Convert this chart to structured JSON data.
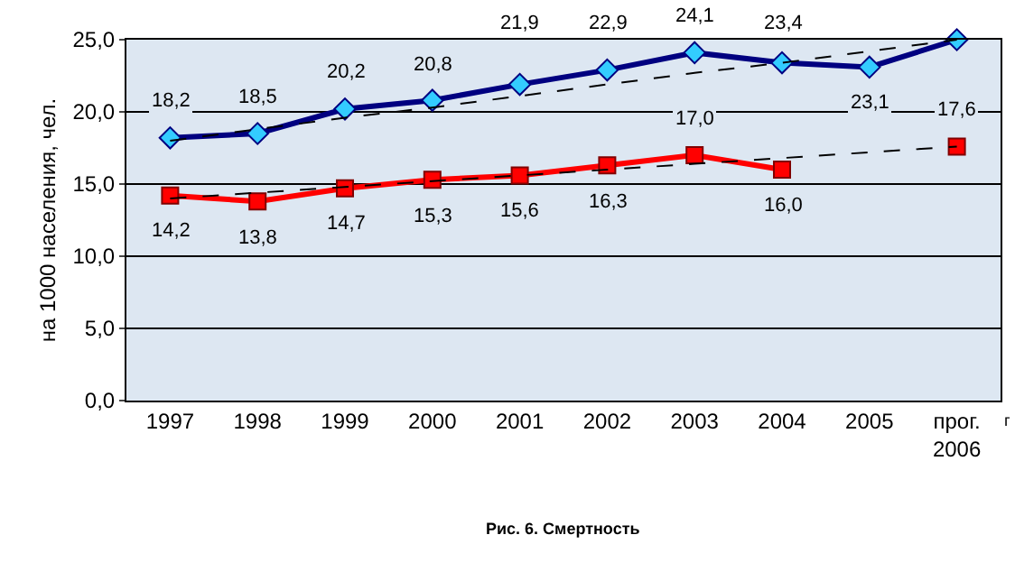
{
  "chart_data": {
    "type": "line",
    "title": "Рис. 6. Смертность",
    "ylabel": "на 1000 населения, чел.",
    "categories": [
      "1997",
      "1998",
      "1999",
      "2000",
      "2001",
      "2002",
      "2003",
      "2004",
      "2005",
      "прог.\n2006"
    ],
    "series": [
      {
        "color": "#000080",
        "values": [
          18.2,
          18.5,
          20.2,
          20.8,
          21.9,
          22.9,
          24.1,
          23.4,
          23.1,
          25.0
        ],
        "marker": "diamond",
        "colors": [
          "#33ccff",
          "#33ccff",
          "#33ccff",
          "#33ccff",
          "#33ccff",
          "#33ccff",
          "#33ccff",
          "#33ccff",
          "#33ccff",
          "#33ccff"
        ],
        "value_labels": [
          "18,2",
          "18,5",
          "20,2",
          "20,8",
          "21,9",
          "22,9",
          "24,1",
          "23,4",
          "23,1",
          null
        ]
      },
      {
        "color": "#ff0000",
        "values": [
          14.2,
          13.8,
          14.7,
          15.3,
          15.6,
          16.3,
          17.0,
          16.0,
          null,
          17.6
        ],
        "marker": "square",
        "value_labels": [
          "14,2",
          "13,8",
          "14,7",
          "15,3",
          "15,6",
          "16,3",
          "17,0",
          "16,0",
          null,
          "17,6"
        ]
      },
      {
        "type": "line",
        "color": "#000000",
        "values": [
          18.0,
          18.8,
          19.6,
          20.3,
          21.1,
          21.9,
          22.7,
          23.4,
          24.2,
          25.0
        ],
        "line_style": "dashed",
        "marker": "none"
      },
      {
        "type": "line",
        "color": "#000000",
        "values": [
          14.0,
          14.4,
          14.8,
          15.2,
          15.6,
          16.0,
          16.4,
          16.8,
          17.2,
          17.6
        ],
        "line_style": "dashed",
        "marker": "none"
      }
    ],
    "ylim": [
      0,
      25
    ],
    "yticks": [
      {
        "value": 0,
        "label": "0,0"
      },
      {
        "value": 5,
        "label": "5,0"
      },
      {
        "value": 10,
        "label": "10,0"
      },
      {
        "value": 15,
        "label": "15,0"
      },
      {
        "value": 20,
        "label": "20,0"
      },
      {
        "value": 25,
        "label": "25,0"
      }
    ],
    "grid": "y",
    "annotations": [
      "г"
    ]
  }
}
